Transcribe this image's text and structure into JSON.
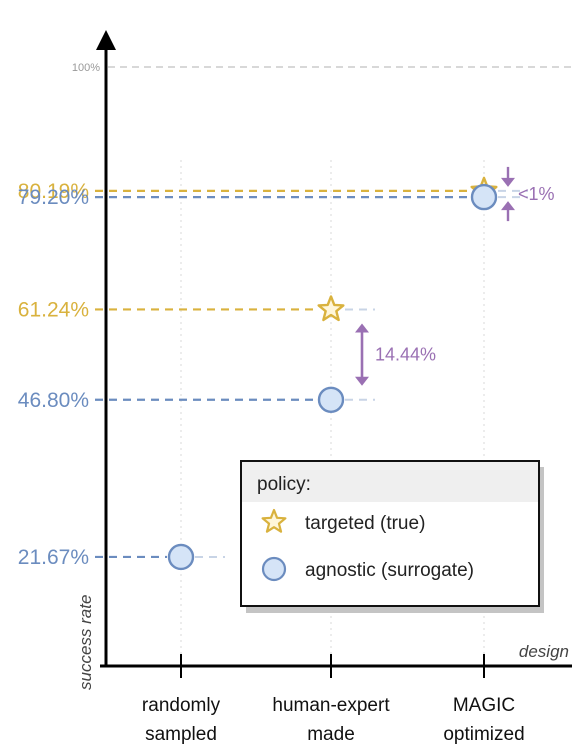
{
  "chart_data": {
    "type": "scatter",
    "categories": [
      [
        "randomly",
        "sampled"
      ],
      [
        "human-expert",
        "made"
      ],
      [
        "MAGIC",
        "optimized"
      ]
    ],
    "xlabel": "design",
    "ylabel": "success rate",
    "ylim": [
      0,
      100
    ],
    "reference_line": {
      "value": 100,
      "label": "100%"
    },
    "series": [
      {
        "name": "targeted (true)",
        "marker": "star",
        "color": "#d9b23e",
        "points": [
          {
            "category": 1,
            "value": 61.24,
            "label": "61.24%"
          },
          {
            "category": 2,
            "value": 80.19,
            "label": "80.19%"
          }
        ]
      },
      {
        "name": "agnostic (surrogate)",
        "marker": "circle",
        "color": "#6b8cbf",
        "points": [
          {
            "category": 0,
            "value": 21.67,
            "label": "21.67%"
          },
          {
            "category": 1,
            "value": 46.8,
            "label": "46.80%"
          },
          {
            "category": 2,
            "value": 79.2,
            "label": "79.20%"
          }
        ]
      }
    ],
    "annotations": [
      {
        "text": "14.44%",
        "category": 1,
        "from": 46.8,
        "to": 61.24,
        "color": "#9a70b3"
      },
      {
        "text": "<1%",
        "category": 2,
        "from": 79.2,
        "to": 80.19,
        "color": "#9a70b3"
      }
    ],
    "legend": {
      "title": "policy:",
      "placement": "bottom-right"
    },
    "grid": false
  }
}
